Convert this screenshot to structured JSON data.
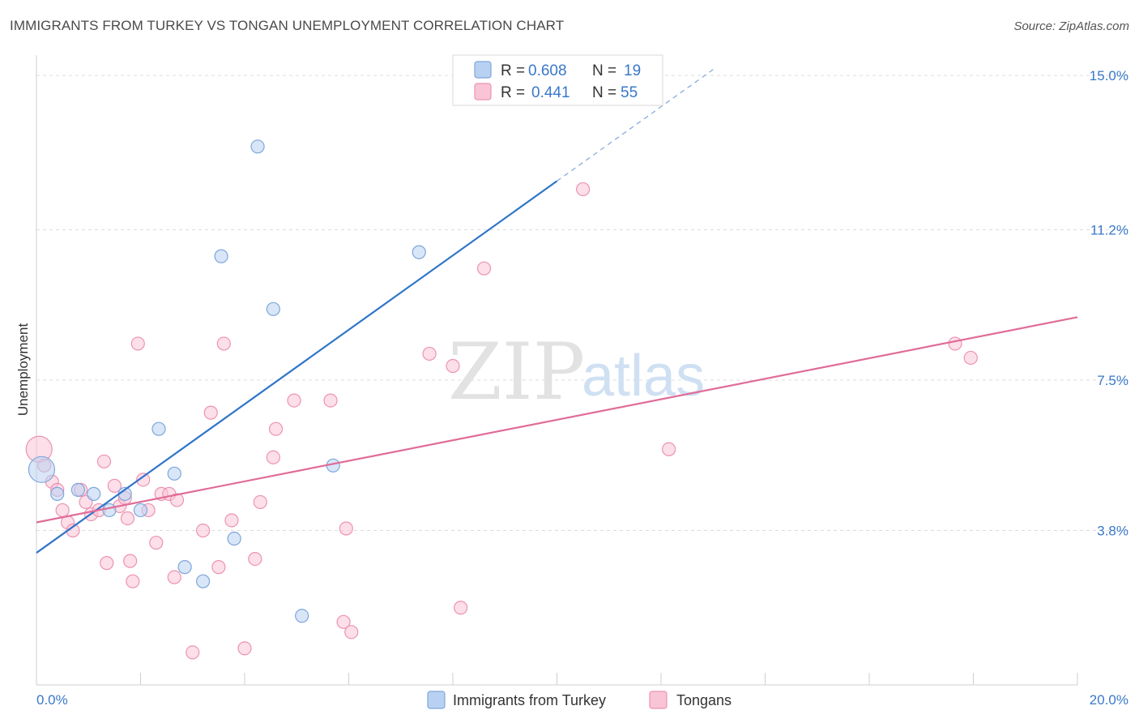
{
  "title": "IMMIGRANTS FROM TURKEY VS TONGAN UNEMPLOYMENT CORRELATION CHART",
  "source": "Source: ZipAtlas.com",
  "watermark": {
    "zip": "ZIP",
    "atlas": "atlas"
  },
  "legend": {
    "rows": [
      {
        "r_label": "R =",
        "r_value": "0.608",
        "n_label": "N =",
        "n_value": "19"
      },
      {
        "r_label": "R =",
        "r_value": "0.441",
        "n_label": "N =",
        "n_value": "55"
      }
    ]
  },
  "bottom_legend": [
    "Immigrants from Turkey",
    "Tongans"
  ],
  "colors": {
    "turkey_fill": "#b8d1f2",
    "turkey_stroke": "#7ea6db",
    "turkey_line": "#2f74c9",
    "tongan_fill": "#f9c4d6",
    "tongan_stroke": "#ec93b2",
    "tongan_line": "#e06c98",
    "grid": "#dcdcdc",
    "tick_text": "#3a78c9"
  },
  "chart_data": {
    "type": "scatter",
    "title": "IMMIGRANTS FROM TURKEY VS TONGAN UNEMPLOYMENT CORRELATION CHART",
    "xlabel": "",
    "ylabel": "Unemployment",
    "xlim": [
      0,
      20
    ],
    "ylim": [
      0,
      15.5
    ],
    "x_tick_labels": [
      "0.0%",
      "20.0%"
    ],
    "y_ticks": [
      3.8,
      7.5,
      11.2,
      15.0
    ],
    "y_tick_labels": [
      "3.8%",
      "7.5%",
      "11.2%",
      "15.0%"
    ],
    "grid": true,
    "series": [
      {
        "name": "Immigrants from Turkey",
        "R": 0.608,
        "N": 19,
        "trend": {
          "x0": 0,
          "y0": 3.25,
          "x1": 10,
          "y1": 12.4,
          "dash_to_x": 13
        },
        "points": [
          {
            "x": 0.1,
            "y": 5.3,
            "big": true
          },
          {
            "x": 0.4,
            "y": 4.7
          },
          {
            "x": 0.8,
            "y": 4.8
          },
          {
            "x": 1.1,
            "y": 4.7
          },
          {
            "x": 1.4,
            "y": 4.3
          },
          {
            "x": 1.7,
            "y": 4.7
          },
          {
            "x": 2.0,
            "y": 4.3
          },
          {
            "x": 2.35,
            "y": 6.3
          },
          {
            "x": 2.65,
            "y": 5.2
          },
          {
            "x": 2.85,
            "y": 2.9
          },
          {
            "x": 3.2,
            "y": 2.55
          },
          {
            "x": 3.55,
            "y": 10.55
          },
          {
            "x": 3.8,
            "y": 3.6
          },
          {
            "x": 4.25,
            "y": 13.25
          },
          {
            "x": 4.55,
            "y": 9.25
          },
          {
            "x": 5.1,
            "y": 1.7
          },
          {
            "x": 5.7,
            "y": 5.4
          },
          {
            "x": 7.35,
            "y": 10.65
          }
        ]
      },
      {
        "name": "Tongans",
        "R": 0.441,
        "N": 55,
        "trend": {
          "x0": 0,
          "y0": 4.0,
          "x1": 20,
          "y1": 9.05
        },
        "points": [
          {
            "x": 0.05,
            "y": 5.8,
            "big": true
          },
          {
            "x": 0.15,
            "y": 5.4
          },
          {
            "x": 0.3,
            "y": 5.0
          },
          {
            "x": 0.4,
            "y": 4.8
          },
          {
            "x": 0.5,
            "y": 4.3
          },
          {
            "x": 0.6,
            "y": 4.0
          },
          {
            "x": 0.7,
            "y": 3.8
          },
          {
            "x": 0.85,
            "y": 4.8
          },
          {
            "x": 0.95,
            "y": 4.5
          },
          {
            "x": 1.05,
            "y": 4.2
          },
          {
            "x": 1.2,
            "y": 4.3
          },
          {
            "x": 1.3,
            "y": 5.5
          },
          {
            "x": 1.35,
            "y": 3.0
          },
          {
            "x": 1.5,
            "y": 4.9
          },
          {
            "x": 1.6,
            "y": 4.4
          },
          {
            "x": 1.7,
            "y": 4.6
          },
          {
            "x": 1.75,
            "y": 4.1
          },
          {
            "x": 1.8,
            "y": 3.05
          },
          {
            "x": 1.85,
            "y": 2.55
          },
          {
            "x": 1.95,
            "y": 8.4
          },
          {
            "x": 2.05,
            "y": 5.05
          },
          {
            "x": 2.15,
            "y": 4.3
          },
          {
            "x": 2.3,
            "y": 3.5
          },
          {
            "x": 2.4,
            "y": 4.7
          },
          {
            "x": 2.55,
            "y": 4.7
          },
          {
            "x": 2.65,
            "y": 2.65
          },
          {
            "x": 2.7,
            "y": 4.55
          },
          {
            "x": 3.0,
            "y": 0.8
          },
          {
            "x": 3.2,
            "y": 3.8
          },
          {
            "x": 3.35,
            "y": 6.7
          },
          {
            "x": 3.5,
            "y": 2.9
          },
          {
            "x": 3.6,
            "y": 8.4
          },
          {
            "x": 3.75,
            "y": 4.05
          },
          {
            "x": 4.0,
            "y": 0.9
          },
          {
            "x": 4.2,
            "y": 3.1
          },
          {
            "x": 4.3,
            "y": 4.5
          },
          {
            "x": 4.55,
            "y": 5.6
          },
          {
            "x": 4.6,
            "y": 6.3
          },
          {
            "x": 4.95,
            "y": 7.0
          },
          {
            "x": 5.65,
            "y": 7.0
          },
          {
            "x": 5.9,
            "y": 1.55
          },
          {
            "x": 5.95,
            "y": 3.85
          },
          {
            "x": 6.05,
            "y": 1.3
          },
          {
            "x": 7.55,
            "y": 8.15
          },
          {
            "x": 8.0,
            "y": 7.85
          },
          {
            "x": 8.15,
            "y": 1.9
          },
          {
            "x": 8.6,
            "y": 10.25
          },
          {
            "x": 10.5,
            "y": 12.2
          },
          {
            "x": 12.15,
            "y": 5.8
          },
          {
            "x": 17.65,
            "y": 8.4
          },
          {
            "x": 17.95,
            "y": 8.05
          }
        ]
      }
    ]
  }
}
